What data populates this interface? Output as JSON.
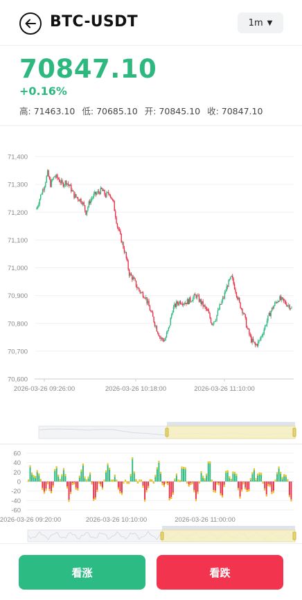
{
  "header": {
    "title": "BTC-USDT",
    "interval": "1m"
  },
  "ticker": {
    "price": "70847.10",
    "change_pct": "+0.16%",
    "high_label": "高:",
    "high": "71463.10",
    "low_label": "低:",
    "low": "70685.10",
    "open_label": "开:",
    "open": "70845.10",
    "close_label": "收:",
    "close": "70847.10"
  },
  "colors": {
    "up": "#2db880",
    "down": "#e8324a",
    "macd_yellow": "#f0c419",
    "zoom_fill": "#f6efbf"
  },
  "chart_data": [
    {
      "type": "candlestick",
      "ylim": [
        70600,
        71400
      ],
      "y_ticks": [
        "71,400",
        "71,300",
        "71,200",
        "71,100",
        "71,000",
        "70,900",
        "70,800",
        "70,700",
        "70,600"
      ],
      "x_ticks": [
        "2026-03-26 09:26:00",
        "2026-03-26 10:18:00",
        "2026-03-26 11:10:00"
      ],
      "close_path": [
        [
          0,
          71215
        ],
        [
          4,
          71260
        ],
        [
          8,
          71300
        ],
        [
          11,
          71340
        ],
        [
          14,
          71300
        ],
        [
          18,
          71330
        ],
        [
          22,
          71320
        ],
        [
          26,
          71300
        ],
        [
          30,
          71310
        ],
        [
          34,
          71290
        ],
        [
          38,
          71260
        ],
        [
          42,
          71250
        ],
        [
          46,
          71240
        ],
        [
          50,
          71200
        ],
        [
          54,
          71240
        ],
        [
          58,
          71260
        ],
        [
          62,
          71270
        ],
        [
          66,
          71280
        ],
        [
          70,
          71260
        ],
        [
          74,
          71270
        ],
        [
          78,
          71230
        ],
        [
          82,
          71150
        ],
        [
          86,
          71100
        ],
        [
          90,
          71050
        ],
        [
          94,
          70980
        ],
        [
          98,
          70960
        ],
        [
          102,
          70930
        ],
        [
          106,
          70910
        ],
        [
          110,
          70900
        ],
        [
          114,
          70860
        ],
        [
          118,
          70820
        ],
        [
          122,
          70780
        ],
        [
          126,
          70745
        ],
        [
          130,
          70740
        ],
        [
          134,
          70780
        ],
        [
          138,
          70850
        ],
        [
          142,
          70870
        ],
        [
          146,
          70880
        ],
        [
          150,
          70875
        ],
        [
          154,
          70880
        ],
        [
          158,
          70890
        ],
        [
          162,
          70900
        ],
        [
          166,
          70880
        ],
        [
          170,
          70860
        ],
        [
          174,
          70840
        ],
        [
          178,
          70800
        ],
        [
          182,
          70820
        ],
        [
          186,
          70860
        ],
        [
          190,
          70895
        ],
        [
          194,
          70940
        ],
        [
          198,
          70965
        ],
        [
          202,
          70920
        ],
        [
          206,
          70870
        ],
        [
          210,
          70840
        ],
        [
          214,
          70780
        ],
        [
          218,
          70740
        ],
        [
          222,
          70720
        ],
        [
          226,
          70735
        ],
        [
          230,
          70770
        ],
        [
          234,
          70810
        ],
        [
          238,
          70845
        ],
        [
          242,
          70870
        ],
        [
          246,
          70890
        ],
        [
          250,
          70880
        ],
        [
          254,
          70870
        ],
        [
          258,
          70860
        ],
        [
          260,
          70847
        ]
      ]
    },
    {
      "type": "bar",
      "ylim": [
        -60,
        60
      ],
      "y_ticks": [
        "60",
        "40",
        "20",
        "0",
        "-20",
        "-40",
        "-60"
      ],
      "x_ticks": [
        "2026-03-26 09:20:00",
        "2026-03-26 10:10:00",
        "2026-03-26 11:00:00"
      ]
    }
  ]
}
